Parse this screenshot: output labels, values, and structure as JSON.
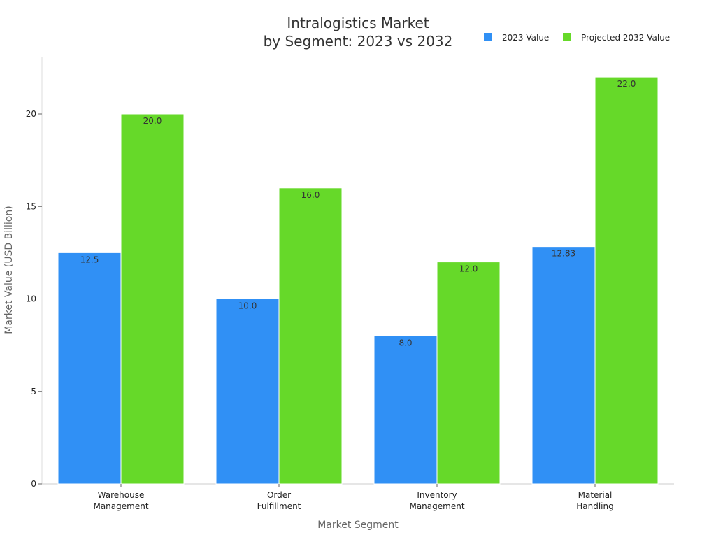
{
  "chart_data": {
    "type": "bar",
    "title_lines": [
      "Intralogistics Market",
      "by Segment: 2023 vs 2032"
    ],
    "xlabel": "Market Segment",
    "ylabel": "Market Value (USD Billion)",
    "categories": [
      [
        "Warehouse",
        "Management"
      ],
      [
        "Order",
        "Fulfillment"
      ],
      [
        "Inventory",
        "Management"
      ],
      [
        "Material",
        "Handling"
      ]
    ],
    "series": [
      {
        "name": "2023 Value",
        "color": "#3090f5",
        "values": [
          12.5,
          10.0,
          8.0,
          12.83
        ],
        "labels": [
          "12.5",
          "10.0",
          "8.0",
          "12.83"
        ]
      },
      {
        "name": "Projected 2032 Value",
        "color": "#66d929",
        "values": [
          20.0,
          16.0,
          12.0,
          22.0
        ],
        "labels": [
          "20.0",
          "16.0",
          "12.0",
          "22.0"
        ]
      }
    ],
    "yticks": [
      0,
      5,
      10,
      15,
      20
    ],
    "ylim": [
      0,
      23.1
    ],
    "grid": false,
    "legend_position": "top-right"
  }
}
